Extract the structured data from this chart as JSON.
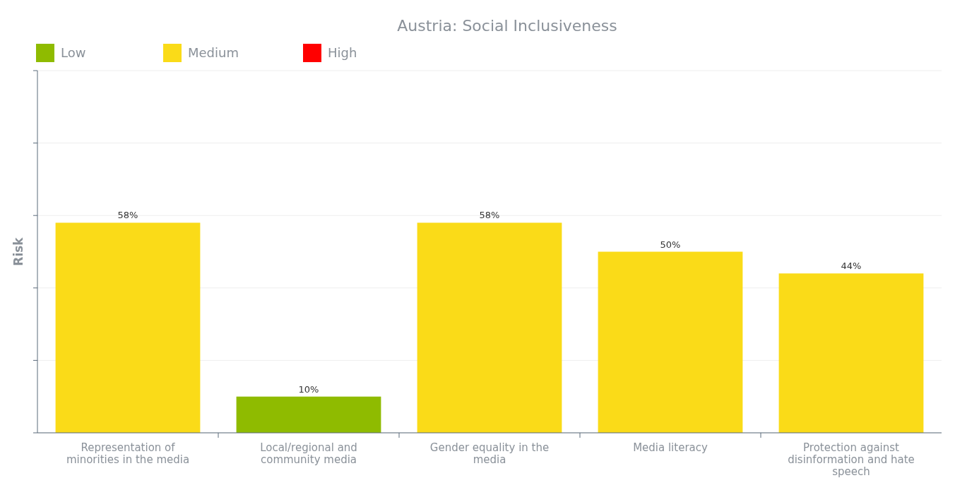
{
  "chart_data": {
    "type": "bar",
    "title": "Austria: Social Inclusiveness",
    "ylabel": "Risk",
    "categories": [
      "Representation of minorities in the media",
      "Local/regional and community media",
      "Gender equality in the media",
      "Media literacy",
      "Protection against disinformation and hate speech"
    ],
    "series": [
      {
        "name": "Low",
        "color": "#8fbb00",
        "values": [
          null,
          10,
          null,
          null,
          null
        ],
        "value_labels": [
          null,
          "10%",
          null,
          null,
          null
        ]
      },
      {
        "name": "Medium",
        "color": "#fadb18",
        "values": [
          58,
          null,
          58,
          50,
          44
        ],
        "value_labels": [
          "58%",
          null,
          "58%",
          "50%",
          "44%"
        ]
      },
      {
        "name": "High",
        "color": "#ff0000",
        "values": [
          null,
          null,
          null,
          null,
          null
        ],
        "value_labels": [
          null,
          null,
          null,
          null,
          null
        ]
      }
    ],
    "ylim": [
      0,
      100
    ],
    "yticks": [
      {
        "value": 0,
        "label": null
      },
      {
        "value": 20,
        "label": null
      },
      {
        "value": 40,
        "label": null
      },
      {
        "value": 60,
        "label": null
      },
      {
        "value": 80,
        "label": null
      },
      {
        "value": 100,
        "label": null
      }
    ],
    "tick_labels": "x",
    "grid": "y",
    "legend": "top left"
  }
}
